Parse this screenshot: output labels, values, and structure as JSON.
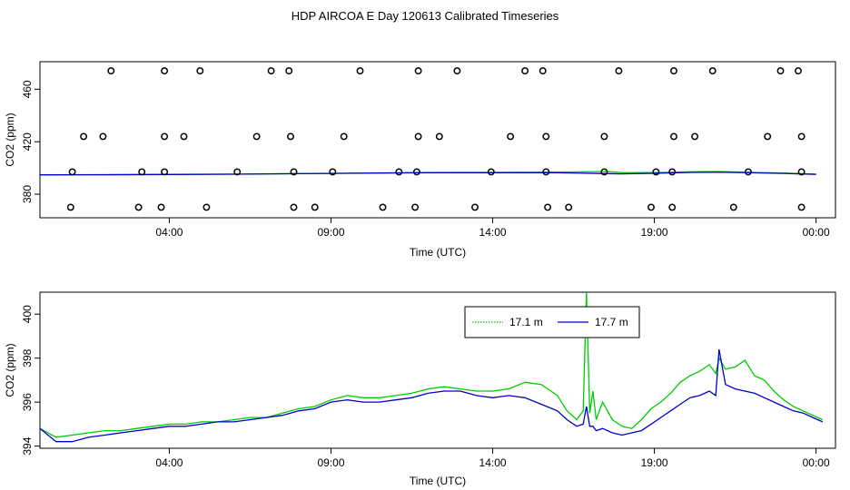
{
  "title": "HDP AIRCOA E  Day 120613  Calibrated Timeseries",
  "colors": {
    "green": "#00cc00",
    "blue": "#0000cc",
    "circles": "#000000"
  },
  "chart_data": [
    {
      "type": "scatter",
      "xlabel": "Time (UTC)",
      "ylabel": "CO2 (ppm)",
      "xlim_hours": [
        0,
        24.6
      ],
      "ylim": [
        362,
        481
      ],
      "x_ticks": [
        {
          "value": 4,
          "label": "04:00"
        },
        {
          "value": 9,
          "label": "09:00"
        },
        {
          "value": 14,
          "label": "14:00"
        },
        {
          "value": 19,
          "label": "19:00"
        },
        {
          "value": 24,
          "label": "00:00"
        }
      ],
      "y_ticks": [
        380,
        420,
        460
      ],
      "calibration_points": {
        "x": [
          2.2,
          3.85,
          4.95,
          7.15,
          7.7,
          9.9,
          11.7,
          12.9,
          15.0,
          15.55,
          17.9,
          19.6,
          20.8,
          22.9,
          23.45,
          1.35,
          1.95,
          3.85,
          4.45,
          6.7,
          7.75,
          9.4,
          11.7,
          12.35,
          14.55,
          15.65,
          17.45,
          19.6,
          20.25,
          22.5,
          23.55,
          0.95,
          3.05,
          3.75,
          5.15,
          7.85,
          8.5,
          10.6,
          11.6,
          13.45,
          15.7,
          16.35,
          18.9,
          19.55,
          21.45,
          23.55,
          1.0,
          3.15,
          3.85,
          6.1,
          7.85,
          9.05,
          11.1,
          11.65,
          13.95,
          15.65,
          17.45,
          19.05,
          19.55,
          21.9,
          23.55
        ],
        "y": [
          474,
          474,
          474,
          474,
          474,
          474,
          474,
          474,
          474,
          474,
          474,
          474,
          474,
          474,
          474,
          424,
          424,
          424,
          424,
          424,
          424,
          424,
          424,
          424,
          424,
          424,
          424,
          424,
          424,
          424,
          424,
          370,
          370,
          370,
          370,
          370,
          370,
          370,
          370,
          370,
          370,
          370,
          370,
          370,
          370,
          370,
          397,
          397,
          397,
          397,
          397,
          397,
          397,
          397,
          397,
          397,
          397,
          397,
          397,
          397,
          397
        ]
      },
      "series": [
        {
          "color": "#00cc00",
          "x": [
            0,
            2,
            4,
            6,
            8,
            10,
            12,
            14,
            16,
            17.5,
            18,
            19,
            20,
            21,
            22,
            23,
            24
          ],
          "y": [
            394.8,
            394.9,
            395.1,
            395.3,
            395.7,
            396.1,
            396.5,
            396.6,
            396.9,
            397.3,
            396.4,
            396.5,
            397.0,
            397.3,
            396.6,
            396.1,
            395.3
          ]
        },
        {
          "color": "#0000cc",
          "x": [
            0,
            2,
            4,
            6,
            8,
            10,
            12,
            14,
            16,
            17.5,
            18,
            19,
            20,
            21,
            22,
            23,
            24
          ],
          "y": [
            394.7,
            394.8,
            395.0,
            395.2,
            395.6,
            396.0,
            396.4,
            396.4,
            396.3,
            395.7,
            395.5,
            395.9,
            396.5,
            396.8,
            396.3,
            395.8,
            395.1
          ]
        }
      ]
    },
    {
      "type": "line",
      "xlabel": "Time (UTC)",
      "ylabel": "CO2 (ppm)",
      "xlim_hours": [
        0,
        24.6
      ],
      "ylim": [
        393.9,
        401.0
      ],
      "x_ticks": [
        {
          "value": 4,
          "label": "04:00"
        },
        {
          "value": 9,
          "label": "09:00"
        },
        {
          "value": 14,
          "label": "14:00"
        },
        {
          "value": 19,
          "label": "19:00"
        },
        {
          "value": 24,
          "label": "00:00"
        }
      ],
      "y_ticks": [
        394,
        396,
        398,
        400
      ],
      "legend": {
        "placement": "top-right",
        "entries": [
          {
            "name": "17.1 m",
            "color": "#00cc00"
          },
          {
            "name": "17.7 m",
            "color": "#0000cc"
          }
        ]
      },
      "series": [
        {
          "name": "17.1 m",
          "color": "#00cc00",
          "x": [
            0.0,
            0.5,
            1.0,
            1.5,
            2.0,
            2.5,
            3.0,
            3.5,
            4.0,
            4.5,
            5.0,
            5.5,
            6.0,
            6.5,
            7.0,
            7.5,
            8.0,
            8.5,
            9.0,
            9.5,
            10.0,
            10.5,
            11.0,
            11.5,
            12.0,
            12.5,
            13.0,
            13.5,
            14.0,
            14.5,
            15.0,
            15.5,
            16.0,
            16.3,
            16.6,
            16.8,
            16.9,
            17.0,
            17.1,
            17.2,
            17.4,
            17.7,
            18.0,
            18.3,
            18.6,
            18.9,
            19.2,
            19.5,
            19.8,
            20.1,
            20.4,
            20.7,
            20.9,
            21.0,
            21.2,
            21.5,
            21.8,
            22.1,
            22.4,
            22.7,
            23.0,
            23.3,
            23.6,
            23.9,
            24.2
          ],
          "y": [
            394.8,
            394.4,
            394.5,
            394.6,
            394.7,
            394.7,
            394.8,
            394.9,
            395.0,
            395.0,
            395.1,
            395.1,
            395.2,
            395.3,
            395.3,
            395.5,
            395.7,
            395.8,
            396.1,
            396.3,
            396.2,
            396.2,
            396.3,
            396.4,
            396.6,
            396.7,
            396.6,
            396.5,
            396.5,
            396.6,
            396.9,
            396.8,
            396.3,
            395.6,
            395.2,
            395.6,
            401.0,
            395.5,
            396.5,
            395.2,
            396.0,
            395.2,
            394.9,
            394.8,
            395.2,
            395.7,
            396.0,
            396.4,
            396.9,
            397.2,
            397.4,
            397.7,
            397.3,
            398.0,
            397.5,
            397.6,
            397.9,
            397.2,
            397.0,
            396.5,
            396.1,
            395.8,
            395.6,
            395.4,
            395.2
          ]
        },
        {
          "name": "17.7 m",
          "color": "#0000cc",
          "x": [
            0.0,
            0.5,
            1.0,
            1.5,
            2.0,
            2.5,
            3.0,
            3.5,
            4.0,
            4.5,
            5.0,
            5.5,
            6.0,
            6.5,
            7.0,
            7.5,
            8.0,
            8.5,
            9.0,
            9.5,
            10.0,
            10.5,
            11.0,
            11.5,
            12.0,
            12.5,
            13.0,
            13.5,
            14.0,
            14.5,
            15.0,
            15.5,
            16.0,
            16.3,
            16.6,
            16.8,
            16.9,
            17.0,
            17.1,
            17.2,
            17.4,
            17.7,
            18.0,
            18.3,
            18.6,
            18.9,
            19.2,
            19.5,
            19.8,
            20.1,
            20.4,
            20.7,
            20.9,
            21.0,
            21.2,
            21.5,
            21.8,
            22.1,
            22.4,
            22.7,
            23.0,
            23.3,
            23.6,
            23.9,
            24.2
          ],
          "y": [
            394.8,
            394.2,
            394.2,
            394.4,
            394.5,
            394.6,
            394.7,
            394.8,
            394.9,
            394.9,
            395.0,
            395.1,
            395.1,
            395.2,
            395.3,
            395.4,
            395.6,
            395.7,
            396.0,
            396.1,
            396.0,
            396.0,
            396.1,
            396.2,
            396.4,
            396.5,
            396.5,
            396.3,
            396.2,
            396.3,
            396.2,
            395.9,
            395.6,
            395.2,
            394.9,
            395.0,
            395.8,
            394.9,
            394.9,
            394.7,
            394.8,
            394.6,
            394.5,
            394.6,
            394.7,
            395.0,
            395.3,
            395.6,
            395.9,
            396.2,
            396.3,
            396.5,
            396.3,
            398.4,
            396.8,
            396.6,
            396.5,
            396.4,
            396.2,
            396.0,
            395.8,
            395.6,
            395.5,
            395.3,
            395.1
          ]
        }
      ]
    }
  ]
}
